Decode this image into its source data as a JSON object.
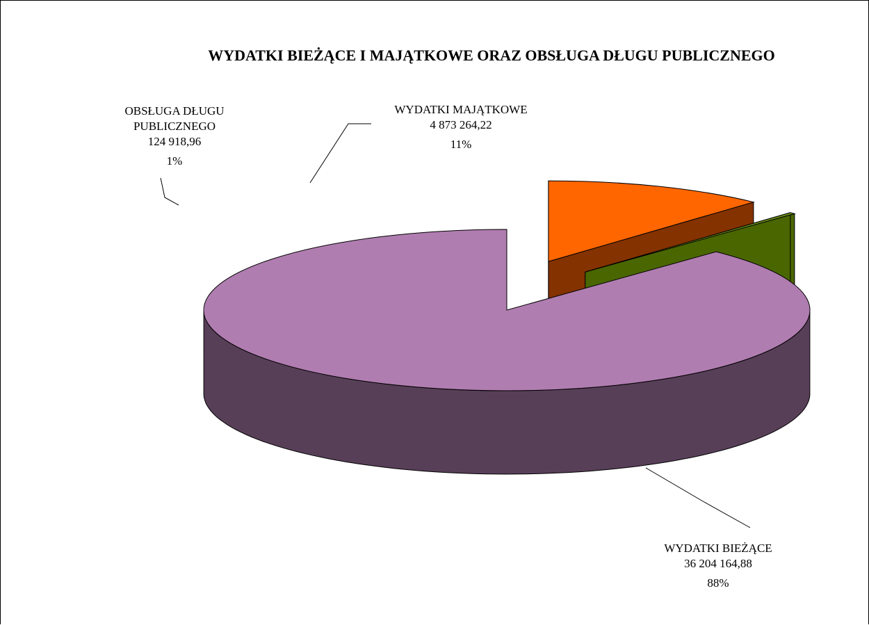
{
  "chart_data": {
    "type": "pie",
    "title": "WYDATKI BIEŻĄCE I MAJĄTKOWE ORAZ OBSŁUGA DŁUGU PUBLICZNEGO",
    "slices": [
      {
        "label": "WYDATKI BIEŻĄCE",
        "label_lines": [
          "WYDATKI BIEŻĄCE"
        ],
        "value": 36204164.88,
        "value_text": "36 204 164,88",
        "percent": 88,
        "percent_text": "88%",
        "top_color": "#b07db0",
        "side_color": "#583f58"
      },
      {
        "label": "OBSŁUGA DŁUGU PUBLICZNEGO",
        "label_lines": [
          "OBSŁUGA DŁUGU",
          "PUBLICZNEGO"
        ],
        "value": 124918.96,
        "value_text": "124 918,96",
        "percent": 1,
        "percent_text": "1%",
        "top_color": "#6b8f1a",
        "side_color": "#4a6600"
      },
      {
        "label": "WYDATKI MAJĄTKOWE",
        "label_lines": [
          "WYDATKI MAJĄTKOWE"
        ],
        "value": 4873264.22,
        "value_text": "4 873 264,22",
        "percent": 11,
        "percent_text": "11%",
        "top_color": "#ff6600",
        "side_color": "#843200"
      }
    ],
    "style": "3d-exploded-pie"
  }
}
